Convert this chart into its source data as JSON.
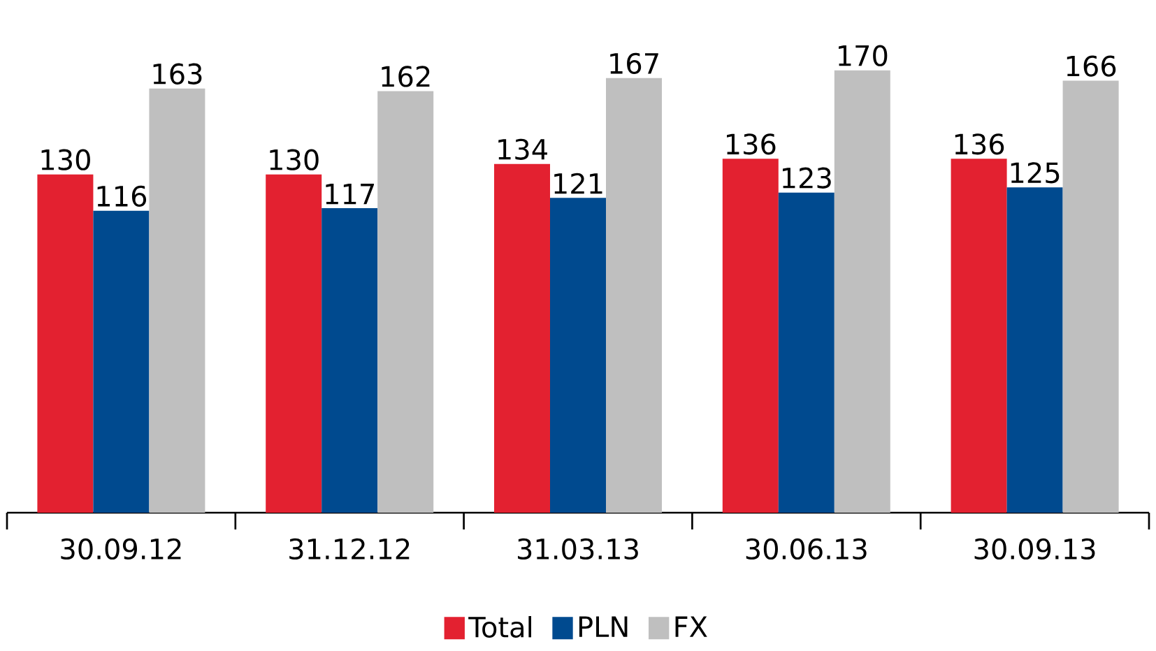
{
  "chart_data": {
    "type": "bar",
    "categories": [
      "30.09.12",
      "31.12.12",
      "31.03.13",
      "30.06.13",
      "30.09.13"
    ],
    "series": [
      {
        "name": "Total",
        "color": "#e32130",
        "values": [
          130,
          130,
          134,
          136,
          136
        ]
      },
      {
        "name": "PLN",
        "color": "#004a8f",
        "values": [
          116,
          117,
          121,
          123,
          125
        ]
      },
      {
        "name": "FX",
        "color": "#bfbfbf",
        "values": [
          163,
          162,
          167,
          170,
          166
        ]
      }
    ],
    "data_labels": true,
    "legend": "bottom"
  }
}
